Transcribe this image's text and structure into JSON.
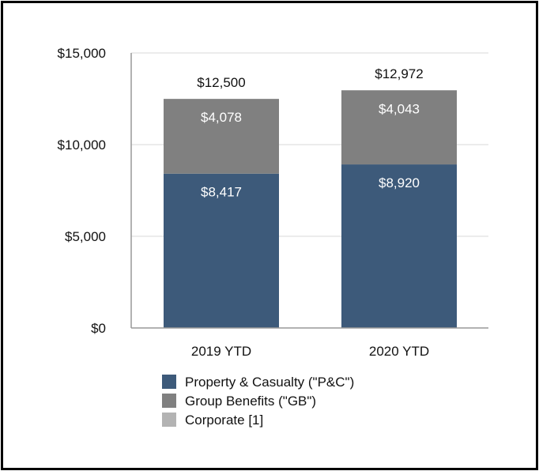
{
  "chart_data": {
    "type": "bar",
    "stacked": true,
    "title": "",
    "xlabel": "",
    "ylabel": "",
    "categories": [
      "2019 YTD",
      "2020 YTD"
    ],
    "series": [
      {
        "name": "Property & Casualty (\"P&C\")",
        "color": "#3d5a7a",
        "values": [
          8417,
          8920
        ],
        "labels": [
          "$8,417",
          "$8,920"
        ]
      },
      {
        "name": "Group Benefits (\"GB\")",
        "color": "#808080",
        "values": [
          4078,
          4043
        ],
        "labels": [
          "$4,078",
          "$4,043"
        ]
      },
      {
        "name": "Corporate [1]",
        "color": "#b3b3b3",
        "values": [
          5,
          9
        ],
        "labels": [
          "",
          ""
        ]
      }
    ],
    "totals": [
      12500,
      12972
    ],
    "total_labels": [
      "$12,500",
      "$12,972"
    ],
    "ylim": [
      0,
      15000
    ],
    "yticks": [
      0,
      5000,
      10000,
      15000
    ],
    "ytick_labels": [
      "$0",
      "$5,000",
      "$10,000",
      "$15,000"
    ],
    "grid": true,
    "legend_position": "bottom"
  }
}
